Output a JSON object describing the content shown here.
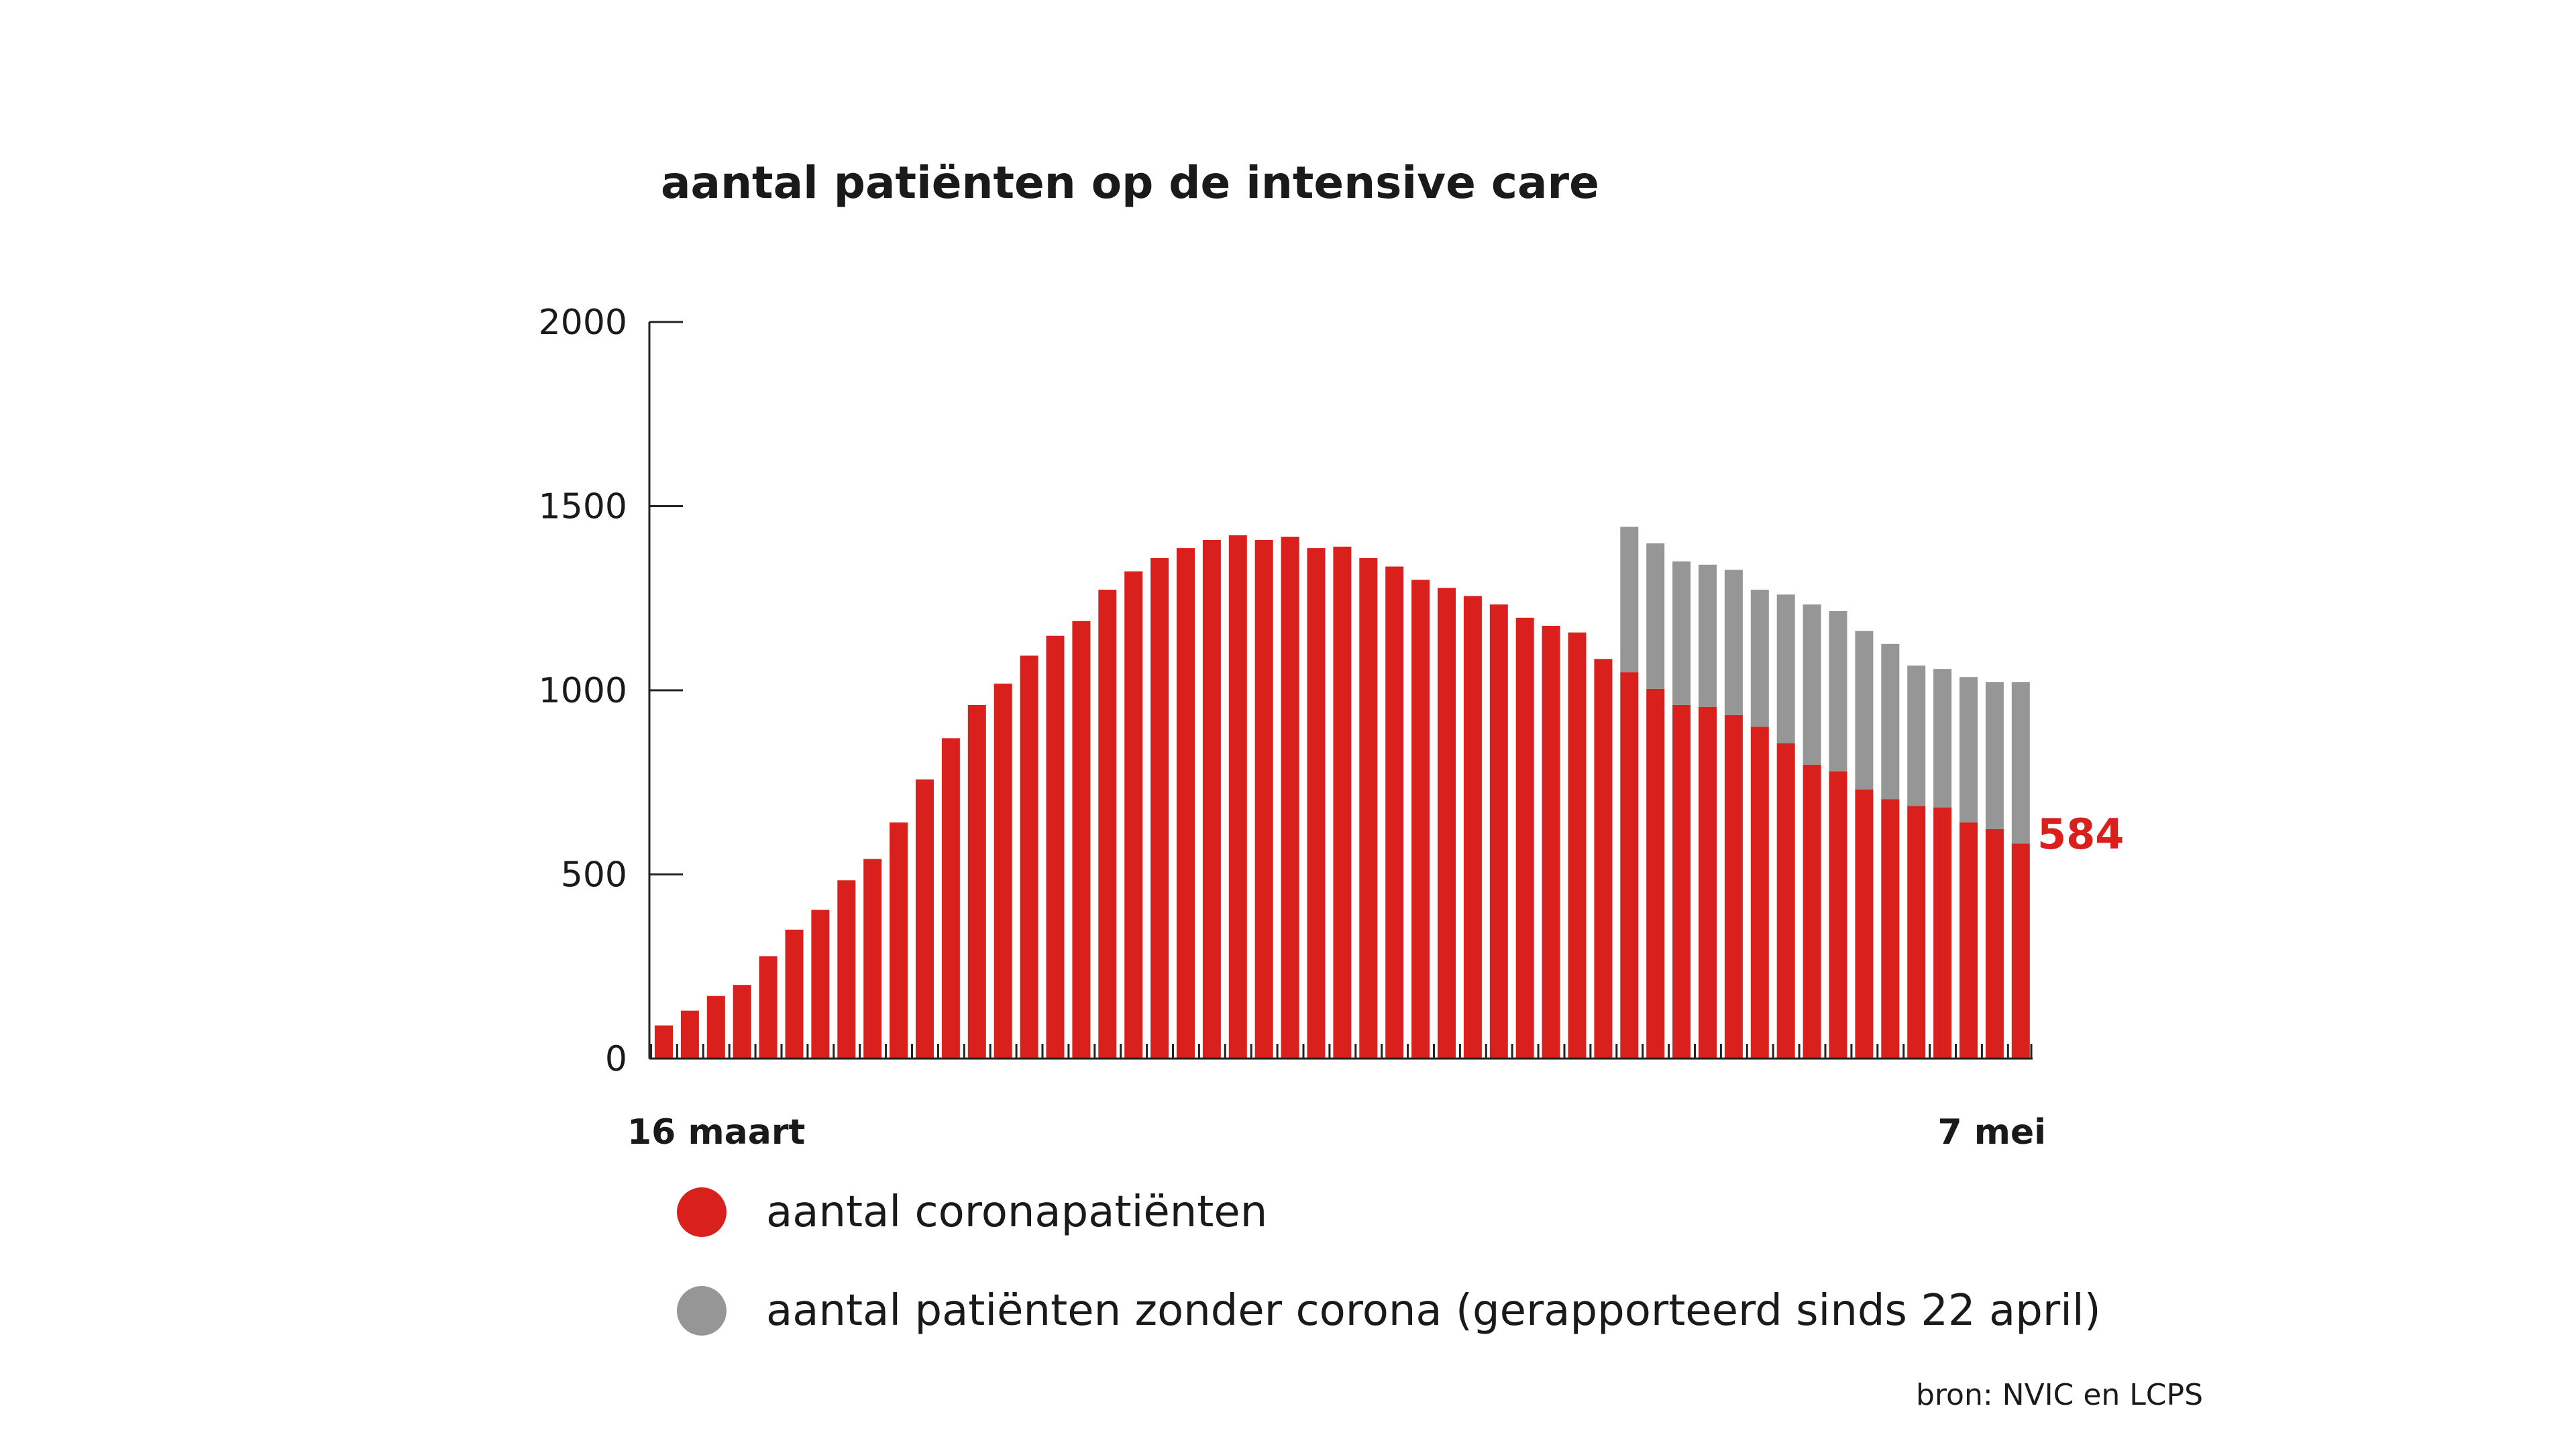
{
  "chart_data": {
    "type": "bar",
    "stacked": true,
    "title": "aantal patiënten op de intensive care",
    "x_start_label": "16 maart",
    "x_end_label": "7 mei",
    "ylim": [
      0,
      2000
    ],
    "y_ticks": [
      "0",
      "500",
      "1000",
      "1500",
      "2000"
    ],
    "grid": false,
    "categories_count": 53,
    "series": [
      {
        "name": "aantal coronapatiënten",
        "color": "#d9201c",
        "values": [
          90,
          130,
          170,
          200,
          278,
          350,
          404,
          484,
          542,
          641,
          758,
          870,
          960,
          1018,
          1094,
          1148,
          1188,
          1273,
          1323,
          1359,
          1386,
          1408,
          1421,
          1408,
          1417,
          1386,
          1390,
          1359,
          1336,
          1300,
          1278,
          1256,
          1233,
          1197,
          1175,
          1157,
          1085,
          1049,
          1004,
          960,
          955,
          933,
          901,
          856,
          798,
          780,
          731,
          704,
          686,
          682,
          641,
          623,
          584
        ]
      },
      {
        "name": "aantal patiënten zonder corona (gerapporteerd sinds 22 april)",
        "color": "#969696",
        "values": [
          0,
          0,
          0,
          0,
          0,
          0,
          0,
          0,
          0,
          0,
          0,
          0,
          0,
          0,
          0,
          0,
          0,
          0,
          0,
          0,
          0,
          0,
          0,
          0,
          0,
          0,
          0,
          0,
          0,
          0,
          0,
          0,
          0,
          0,
          0,
          0,
          0,
          395,
          395,
          390,
          386,
          394,
          372,
          404,
          435,
          435,
          430,
          422,
          381,
          376,
          395,
          399,
          438
        ]
      }
    ],
    "annotation": "584",
    "legend_placement": "bottom",
    "source": "bron: NVIC en LCPS"
  }
}
